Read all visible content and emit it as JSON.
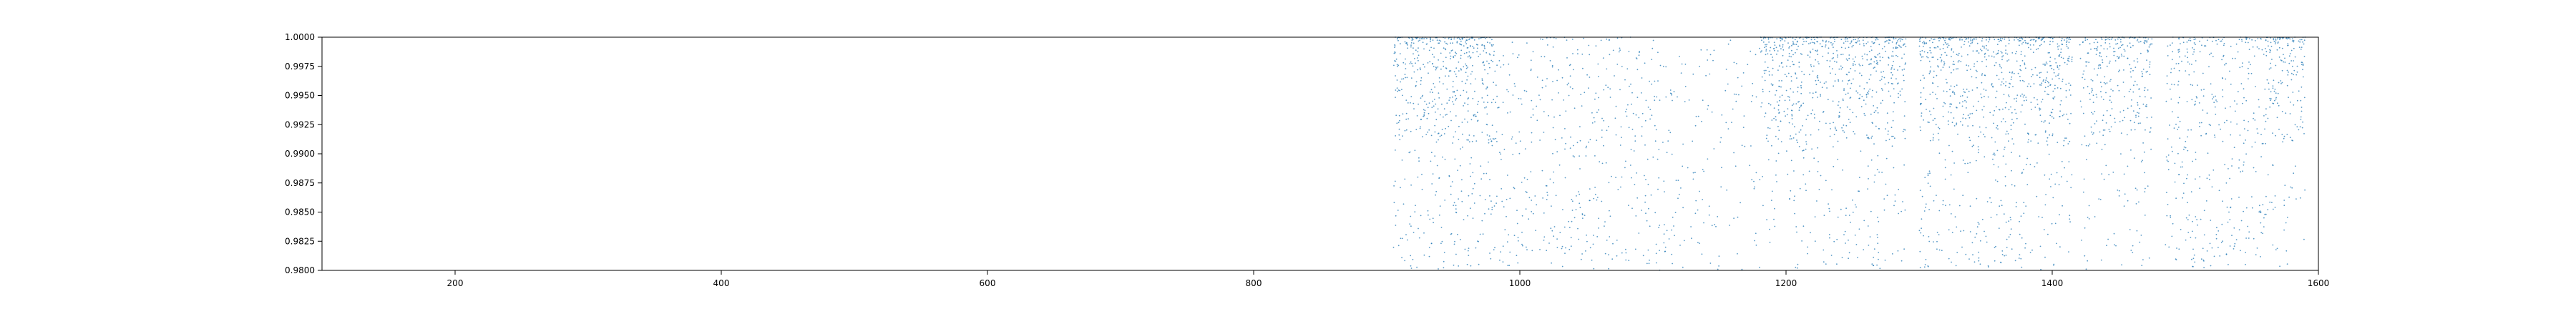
{
  "chart_data": {
    "type": "scatter",
    "title": "",
    "xlabel": "",
    "ylabel": "",
    "xlim": [
      100,
      1600
    ],
    "ylim": [
      0.98,
      1.0
    ],
    "x_ticks": [
      200,
      400,
      600,
      800,
      1000,
      1200,
      1400,
      1600
    ],
    "x_tick_labels": [
      "200",
      "400",
      "600",
      "800",
      "1000",
      "1200",
      "1400",
      "1600"
    ],
    "y_ticks": [
      0.98,
      0.9825,
      0.985,
      0.9875,
      0.99,
      0.9925,
      0.995,
      0.9975,
      1.0
    ],
    "y_tick_labels": [
      "0.9800",
      "0.9825",
      "0.9850",
      "0.9875",
      "0.9900",
      "0.9925",
      "0.9950",
      "0.9975",
      "1.0000"
    ],
    "grid": false,
    "series": [
      {
        "color": "#1f77b4",
        "marker": "dot",
        "clusters": [
          {
            "x_range": [
              905,
              980
            ],
            "y_range": [
              0.98,
              1.0
            ],
            "density": 40,
            "bias_top": 0.55
          },
          {
            "x_range": [
              980,
              1110
            ],
            "y_range": [
              0.98,
              1.0
            ],
            "density": 18,
            "bias_top": 0.1
          },
          {
            "x_range": [
              1110,
              1180
            ],
            "y_range": [
              0.98,
              1.0
            ],
            "density": 10,
            "bias_top": 0.0
          },
          {
            "x_range": [
              1180,
              1290
            ],
            "y_range": [
              0.98,
              1.0
            ],
            "density": 36,
            "bias_top": 0.65
          },
          {
            "x_range": [
              1300,
              1415
            ],
            "y_range": [
              0.98,
              1.0
            ],
            "density": 38,
            "bias_top": 0.55
          },
          {
            "x_range": [
              1420,
              1475
            ],
            "y_range": [
              0.98,
              1.0
            ],
            "density": 30,
            "bias_top": 0.6
          },
          {
            "x_range": [
              1485,
              1560
            ],
            "y_range": [
              0.98,
              1.0
            ],
            "density": 26,
            "bias_top": 0.2
          },
          {
            "x_range": [
              1560,
              1590
            ],
            "y_range": [
              0.98,
              1.0
            ],
            "density": 34,
            "bias_top": 0.7
          }
        ]
      }
    ]
  }
}
